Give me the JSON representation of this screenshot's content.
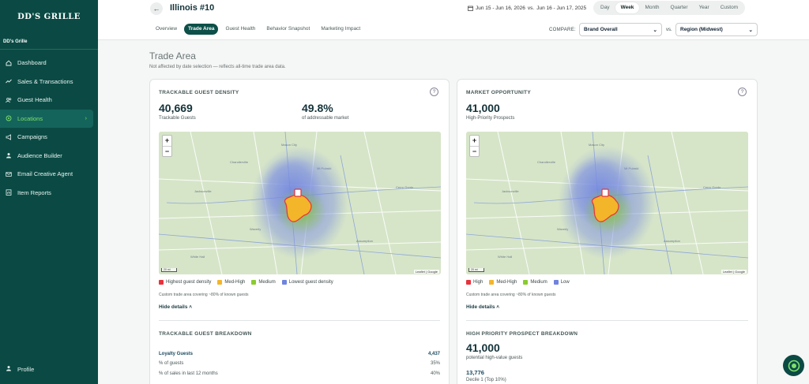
{
  "sidebar": {
    "logo": "DD'S GRILLE",
    "brand_name": "DD's Grille",
    "items": [
      {
        "label": "Dashboard",
        "icon": "home-icon"
      },
      {
        "label": "Sales & Transactions",
        "icon": "trend-icon"
      },
      {
        "label": "Guest Health",
        "icon": "users-icon"
      },
      {
        "label": "Locations",
        "icon": "map-pin-icon",
        "active": true
      },
      {
        "label": "Campaigns",
        "icon": "megaphone-icon"
      },
      {
        "label": "Audience Builder",
        "icon": "audience-icon"
      },
      {
        "label": "Email Creative Agent",
        "icon": "mail-icon"
      },
      {
        "label": "Item Reports",
        "icon": "report-icon"
      }
    ],
    "profile": "Profile"
  },
  "header": {
    "title": "Illinois #10",
    "date_current": "Jun 15 - Jun 16, 2026",
    "date_vs": "vs.",
    "date_compare": "Jun 16 - Jun 17, 2025",
    "periods": [
      "Day",
      "Week",
      "Month",
      "Quarter",
      "Year",
      "Custom"
    ],
    "period_selected": "Week"
  },
  "tabs": [
    "Overview",
    "Trade Area",
    "Guest Health",
    "Behavior Snapshot",
    "Marketing Impact"
  ],
  "tab_selected": "Trade Area",
  "compare": {
    "label": "COMPARE:",
    "first": "Brand Overall",
    "vs": "vs.",
    "second": "Region (Midwest)"
  },
  "page": {
    "title": "Trade Area",
    "subtitle": "Not affected by date selection — reflects all-time trade area data."
  },
  "left_card": {
    "title": "TRACKABLE GUEST DENSITY",
    "metric1_value": "40,669",
    "metric1_label": "Trackable Guests",
    "metric2_value": "49.8%",
    "metric2_label": "of addressable market",
    "legend": [
      "Highest guest density",
      "Med-High",
      "Medium",
      "Lowest guest density"
    ],
    "note": "Custom trade area covering ~80% of known guests",
    "hide_details": "Hide details",
    "breakdown_title": "TRACKABLE GUEST BREAKDOWN",
    "rows": [
      {
        "label": "Loyalty Guests",
        "value": "4,437"
      },
      {
        "label": "% of guests",
        "value": "35%"
      },
      {
        "label": "% of sales in last 12 months",
        "value": "40%"
      }
    ]
  },
  "right_card": {
    "title": "MARKET OPPORTUNITY",
    "metric1_value": "41,000",
    "metric1_label": "High-Priority Prospects",
    "legend": [
      "High",
      "Med-High",
      "Medium",
      "Low"
    ],
    "note": "Custom trade area covering ~80% of known guests",
    "hide_details": "Hide details",
    "breakdown_title": "HIGH PRIORITY PROSPECT BREAKDOWN",
    "bd_value": "41,000",
    "bd_label": "potential high-value guests",
    "decile_value": "13,776",
    "decile_label": "Decile 1 (Top 10%)"
  },
  "map": {
    "attribution": "Leaflet | Google",
    "scale": "20 mi",
    "zoom_in": "+",
    "zoom_out": "−"
  },
  "colors": {
    "sidebar": "#0b4a44",
    "accent": "#7ee06a",
    "high": "#e8323c",
    "med_high": "#f3b52a",
    "medium": "#8acb2e",
    "low": "#6f84e0"
  }
}
